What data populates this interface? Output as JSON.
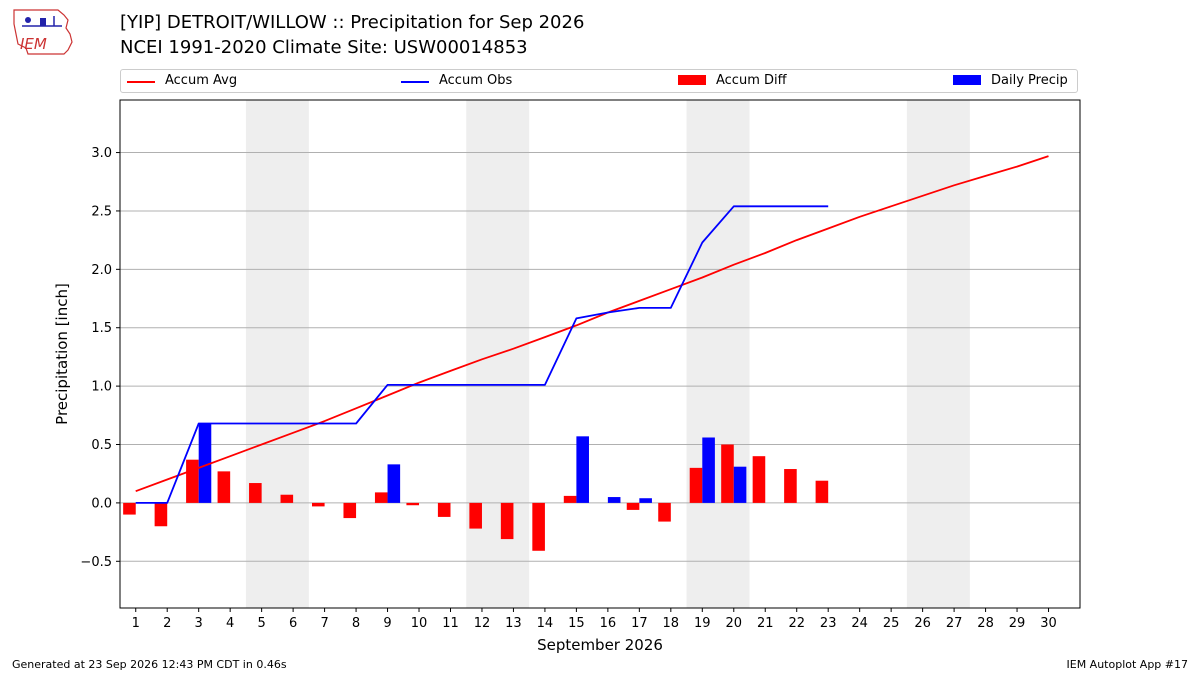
{
  "header": {
    "logo_text": "IEM",
    "title_line1": "[YIP] DETROIT/WILLOW :: Precipitation for Sep 2026",
    "title_line2": "NCEI 1991-2020 Climate Site: USW00014853"
  },
  "footer": {
    "left": "Generated at 23 Sep 2026 12:43 PM CDT in 0.46s",
    "right": "IEM Autoplot App #17"
  },
  "colors": {
    "accum_avg": "#ff0000",
    "accum_obs": "#0000ff",
    "accum_diff": "#ff0000",
    "daily_precip": "#0000ff",
    "weekend_shade": "#eeeeee",
    "grid": "#b0b0b0"
  },
  "chart_data": {
    "type": "bar",
    "title": "[YIP] DETROIT/WILLOW :: Precipitation for Sep 2026",
    "subtitle": "NCEI 1991-2020 Climate Site: USW00014853",
    "xlabel": "September 2026",
    "ylabel": "Precipitation [inch]",
    "xlim": [
      0.5,
      31.0
    ],
    "ylim": [
      -0.9,
      3.45
    ],
    "grid": true,
    "legend_placement": "top",
    "x_ticks": [
      1,
      2,
      3,
      4,
      5,
      6,
      7,
      8,
      9,
      10,
      11,
      12,
      13,
      14,
      15,
      16,
      17,
      18,
      19,
      20,
      21,
      22,
      23,
      24,
      25,
      26,
      27,
      28,
      29,
      30
    ],
    "y_ticks": [
      -0.5,
      0.0,
      0.5,
      1.0,
      1.5,
      2.0,
      2.5,
      3.0
    ],
    "y_tick_labels": [
      "−0.5",
      "0.0",
      "0.5",
      "1.0",
      "1.5",
      "2.0",
      "2.5",
      "3.0"
    ],
    "weekend_spans": [
      [
        4.5,
        6.5
      ],
      [
        11.5,
        13.5
      ],
      [
        18.5,
        20.5
      ],
      [
        25.5,
        27.5
      ]
    ],
    "series": [
      {
        "name": "Accum Avg",
        "kind": "line",
        "x": [
          1,
          2,
          3,
          4,
          5,
          6,
          7,
          8,
          9,
          10,
          11,
          12,
          13,
          14,
          15,
          16,
          17,
          18,
          19,
          20,
          21,
          22,
          23,
          24,
          25,
          26,
          27,
          28,
          29,
          30
        ],
        "values": [
          0.1,
          0.2,
          0.3,
          0.4,
          0.5,
          0.6,
          0.7,
          0.81,
          0.92,
          1.03,
          1.13,
          1.23,
          1.32,
          1.42,
          1.52,
          1.63,
          1.73,
          1.83,
          1.93,
          2.04,
          2.14,
          2.25,
          2.35,
          2.45,
          2.54,
          2.63,
          2.72,
          2.8,
          2.88,
          2.97
        ]
      },
      {
        "name": "Accum Obs",
        "kind": "line",
        "x": [
          1,
          2,
          3,
          4,
          5,
          6,
          7,
          8,
          9,
          10,
          11,
          12,
          13,
          14,
          15,
          16,
          17,
          18,
          19,
          20,
          21,
          22,
          23
        ],
        "values": [
          0.0,
          0.0,
          0.68,
          0.68,
          0.68,
          0.68,
          0.68,
          0.68,
          1.01,
          1.01,
          1.01,
          1.01,
          1.01,
          1.01,
          1.58,
          1.63,
          1.67,
          1.67,
          2.23,
          2.54,
          2.54,
          2.54,
          2.54
        ]
      },
      {
        "name": "Accum Diff",
        "kind": "bar",
        "x": [
          1,
          2,
          3,
          4,
          5,
          6,
          7,
          8,
          9,
          10,
          11,
          12,
          13,
          14,
          15,
          16,
          17,
          18,
          19,
          20,
          21,
          22,
          23
        ],
        "values": [
          -0.1,
          -0.2,
          0.37,
          0.27,
          0.17,
          0.07,
          -0.03,
          -0.13,
          0.09,
          -0.02,
          -0.12,
          -0.22,
          -0.31,
          -0.41,
          0.06,
          0.0,
          -0.06,
          -0.16,
          0.3,
          0.5,
          0.4,
          0.29,
          0.19
        ]
      },
      {
        "name": "Daily Precip",
        "kind": "bar",
        "x": [
          1,
          2,
          3,
          4,
          5,
          6,
          7,
          8,
          9,
          10,
          11,
          12,
          13,
          14,
          15,
          16,
          17,
          18,
          19,
          20,
          21,
          22,
          23
        ],
        "values": [
          0,
          0,
          0.68,
          0,
          0,
          0,
          0,
          0,
          0.33,
          0,
          0,
          0,
          0,
          0,
          0.57,
          0.05,
          0.04,
          0,
          0.56,
          0.31,
          0,
          0,
          0
        ]
      }
    ]
  }
}
